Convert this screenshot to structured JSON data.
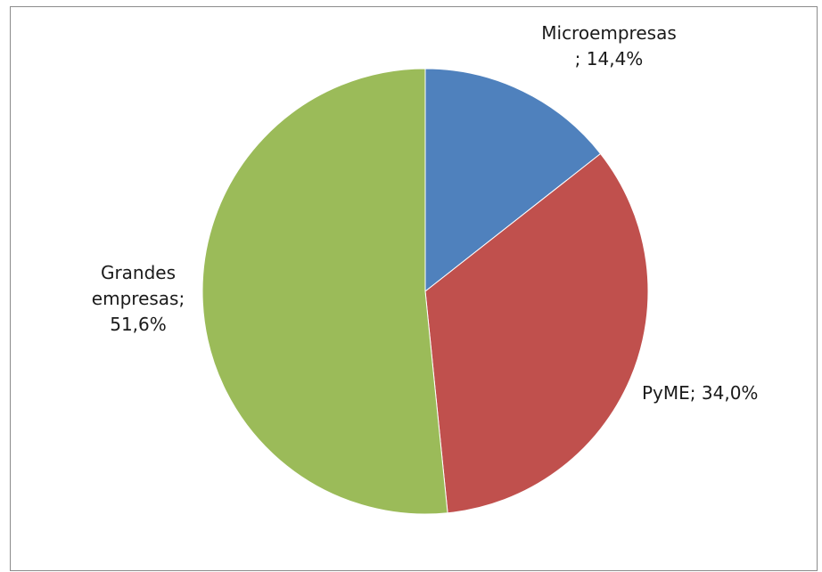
{
  "chart_data": {
    "type": "pie",
    "title": "",
    "slices": [
      {
        "name": "Microempresas",
        "value": 14.4,
        "color": "#4f81bd",
        "label_lines": [
          "Microempresas",
          "; 14,4%"
        ]
      },
      {
        "name": "PyME",
        "value": 34.0,
        "color": "#c0504d",
        "label_lines": [
          "PyME; 34,0%"
        ]
      },
      {
        "name": "Grandes empresas",
        "value": 51.6,
        "color": "#9bbb59",
        "label_lines": [
          "Grandes",
          "empresas;",
          "51,6%"
        ]
      }
    ],
    "start_angle": "12 o'clock",
    "direction": "clockwise",
    "legend": "none"
  }
}
